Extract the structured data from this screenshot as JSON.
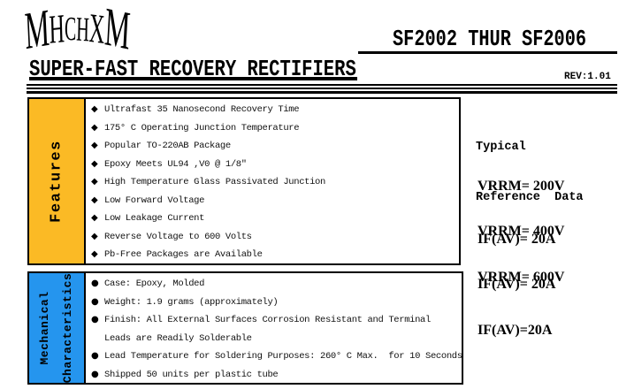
{
  "brand": {
    "logo_letters": [
      "M",
      "H",
      "C",
      "H",
      "X",
      "M"
    ]
  },
  "header": {
    "part_range": "SF2002 THUR SF2006",
    "title": "SUPER-FAST RECOVERY RECTIFIERS",
    "revision": "REV:1.01"
  },
  "features": {
    "label": "Features",
    "bullet": "◆",
    "items": [
      "Ultrafast 35 Nanosecond Recovery Time",
      "175° C Operating Junction Temperature",
      "Popular TO-220AB Package",
      "Epoxy Meets UL94 ,V0 @ 1/8″",
      "High Temperature Glass Passivated Junction",
      "Low Forward Voltage",
      "Low Leakage Current",
      "Reverse Voltage to 600 Volts",
      "Pb-Free Packages are Available"
    ]
  },
  "mechanical": {
    "label_line1": "Mechanical",
    "label_line2": "Characteristics",
    "bullets": [
      "●",
      "●",
      "●",
      "",
      "●",
      "●"
    ],
    "items": [
      "Case: Epoxy, Molded",
      "Weight: 1.9 grams (approximately)",
      "Finish: All External Surfaces Corrosion Resistant and Terminal",
      "Leads are Readily Solderable",
      "Lead Temperature for Soldering Purposes: 260° C Max.  for 10 Seconds",
      "Shipped 50 units per plastic tube"
    ]
  },
  "reference": {
    "heading_line1": "Typical",
    "heading_line2": "Reference  Data",
    "groups": [
      {
        "vrrm": "VRRM= 200V",
        "if": "IF(AV)= 20A"
      },
      {
        "vrrm": "VRRM= 400V",
        "if": "IF(AV)= 20A"
      },
      {
        "vrrm": "VRRM= 600V",
        "if": "IF(AV)=20A"
      }
    ]
  },
  "colors": {
    "features_bg": "#FBBA25",
    "mechanical_bg": "#2595EE",
    "border": "#000000"
  }
}
